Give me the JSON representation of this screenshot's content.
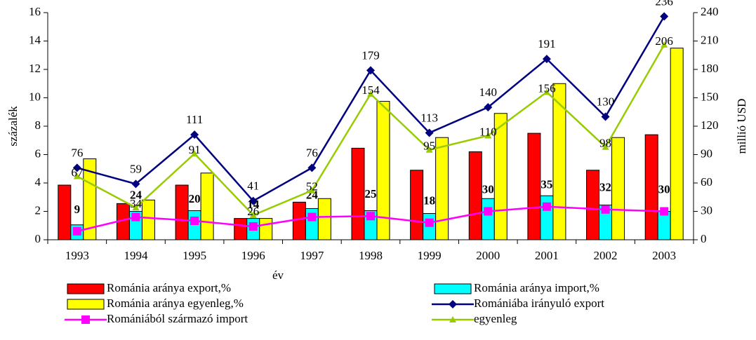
{
  "chart_data": {
    "type": "bar",
    "x_label": "év",
    "y_label": "százalék",
    "y2_label": "millió USD",
    "categories": [
      "1993",
      "1994",
      "1995",
      "1996",
      "1997",
      "1998",
      "1999",
      "2000",
      "2001",
      "2002",
      "2003"
    ],
    "ylim": [
      0,
      16
    ],
    "yticks": [
      0,
      2,
      4,
      6,
      8,
      10,
      12,
      14,
      16
    ],
    "y2lim": [
      0,
      240
    ],
    "y2ticks": [
      0,
      30,
      60,
      90,
      120,
      150,
      180,
      210,
      240
    ],
    "grid": false,
    "legend": "bottom",
    "series": [
      {
        "name": "Románia aránya export,%",
        "kind": "bar",
        "color": "#ff0000",
        "values": [
          3.85,
          2.55,
          3.85,
          1.5,
          2.65,
          6.45,
          4.9,
          6.2,
          7.5,
          4.9,
          7.4
        ]
      },
      {
        "name": "Románia aránya import,%",
        "kind": "bar",
        "color": "#00ffff",
        "values": [
          1.05,
          2.0,
          2.05,
          1.5,
          2.2,
          2.05,
          1.85,
          2.9,
          3.1,
          2.45,
          2.0
        ]
      },
      {
        "name": "Románia aránya egyenleg,%",
        "kind": "bar",
        "color": "#ffff00",
        "values": [
          5.7,
          2.8,
          4.7,
          1.5,
          2.9,
          9.75,
          7.2,
          8.9,
          11.0,
          7.2,
          13.5
        ]
      },
      {
        "name": "Romániába irányuló export",
        "kind": "line",
        "axis": "y2",
        "color": "#000080",
        "marker": "diamond",
        "data_labels": true,
        "values": [
          76,
          59,
          111,
          41,
          76,
          179,
          113,
          140,
          191,
          130,
          236
        ]
      },
      {
        "name": "Romániából származó import",
        "kind": "line",
        "axis": "y2",
        "color": "#ff00ff",
        "marker": "square",
        "data_labels": true,
        "values": [
          9,
          24,
          20,
          14,
          24,
          25,
          18,
          30,
          35,
          32,
          30
        ]
      },
      {
        "name": "egyenleg",
        "kind": "line",
        "axis": "y2",
        "color": "#99cc00",
        "marker": "triangle",
        "data_labels": true,
        "values": [
          67,
          34,
          91,
          26,
          52,
          154,
          95,
          110,
          156,
          98,
          206
        ]
      }
    ]
  }
}
